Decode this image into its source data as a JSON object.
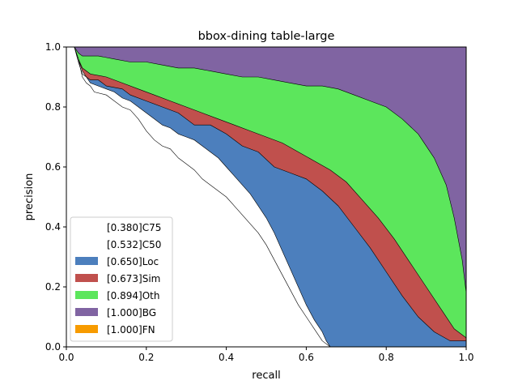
{
  "chart_data": {
    "type": "area",
    "title": "bbox-dining table-large",
    "xlabel": "recall",
    "ylabel": "precision",
    "xlim": [
      0,
      1
    ],
    "ylim": [
      0,
      1
    ],
    "xticks": [
      "0.0",
      "0.2",
      "0.4",
      "0.6",
      "0.8",
      "1.0"
    ],
    "yticks": [
      "0.0",
      "0.2",
      "0.4",
      "0.6",
      "0.8",
      "1.0"
    ],
    "legend_position": "lower-left",
    "series": [
      {
        "name": "[0.380]C75",
        "color": "#ffffff",
        "points": [
          [
            0.0,
            1.0
          ],
          [
            0.02,
            1.0
          ],
          [
            0.03,
            0.96
          ],
          [
            0.04,
            0.9
          ],
          [
            0.05,
            0.88
          ],
          [
            0.06,
            0.87
          ],
          [
            0.07,
            0.85
          ],
          [
            0.1,
            0.84
          ],
          [
            0.12,
            0.82
          ],
          [
            0.14,
            0.8
          ],
          [
            0.16,
            0.79
          ],
          [
            0.18,
            0.76
          ],
          [
            0.2,
            0.72
          ],
          [
            0.22,
            0.69
          ],
          [
            0.24,
            0.67
          ],
          [
            0.26,
            0.66
          ],
          [
            0.28,
            0.63
          ],
          [
            0.3,
            0.61
          ],
          [
            0.32,
            0.59
          ],
          [
            0.34,
            0.56
          ],
          [
            0.36,
            0.54
          ],
          [
            0.38,
            0.52
          ],
          [
            0.4,
            0.5
          ],
          [
            0.42,
            0.47
          ],
          [
            0.44,
            0.44
          ],
          [
            0.46,
            0.41
          ],
          [
            0.48,
            0.38
          ],
          [
            0.5,
            0.34
          ],
          [
            0.52,
            0.29
          ],
          [
            0.54,
            0.24
          ],
          [
            0.56,
            0.19
          ],
          [
            0.58,
            0.14
          ],
          [
            0.6,
            0.1
          ],
          [
            0.62,
            0.06
          ],
          [
            0.64,
            0.02
          ],
          [
            0.66,
            0.0
          ]
        ]
      },
      {
        "name": "[0.532]C50",
        "color": "#ffffff",
        "points": [
          [
            0.0,
            1.0
          ],
          [
            0.02,
            1.0
          ],
          [
            0.03,
            0.96
          ],
          [
            0.04,
            0.92
          ],
          [
            0.05,
            0.9
          ],
          [
            0.06,
            0.88
          ],
          [
            0.08,
            0.87
          ],
          [
            0.1,
            0.86
          ],
          [
            0.12,
            0.85
          ],
          [
            0.14,
            0.83
          ],
          [
            0.16,
            0.82
          ],
          [
            0.18,
            0.8
          ],
          [
            0.2,
            0.78
          ],
          [
            0.22,
            0.76
          ],
          [
            0.24,
            0.74
          ],
          [
            0.26,
            0.73
          ],
          [
            0.28,
            0.71
          ],
          [
            0.3,
            0.7
          ],
          [
            0.32,
            0.69
          ],
          [
            0.34,
            0.67
          ],
          [
            0.36,
            0.65
          ],
          [
            0.38,
            0.63
          ],
          [
            0.4,
            0.6
          ],
          [
            0.42,
            0.57
          ],
          [
            0.44,
            0.54
          ],
          [
            0.46,
            0.51
          ],
          [
            0.48,
            0.47
          ],
          [
            0.5,
            0.43
          ],
          [
            0.52,
            0.38
          ],
          [
            0.54,
            0.32
          ],
          [
            0.56,
            0.26
          ],
          [
            0.58,
            0.2
          ],
          [
            0.6,
            0.14
          ],
          [
            0.62,
            0.09
          ],
          [
            0.64,
            0.05
          ],
          [
            0.65,
            0.02
          ],
          [
            0.66,
            0.0
          ]
        ]
      },
      {
        "name": "[0.650]Loc",
        "color": "#4c7fbd",
        "points": [
          [
            0.0,
            1.0
          ],
          [
            0.02,
            1.0
          ],
          [
            0.03,
            0.95
          ],
          [
            0.04,
            0.91
          ],
          [
            0.06,
            0.89
          ],
          [
            0.08,
            0.89
          ],
          [
            0.1,
            0.87
          ],
          [
            0.14,
            0.86
          ],
          [
            0.16,
            0.84
          ],
          [
            0.2,
            0.82
          ],
          [
            0.24,
            0.8
          ],
          [
            0.28,
            0.78
          ],
          [
            0.32,
            0.74
          ],
          [
            0.36,
            0.74
          ],
          [
            0.4,
            0.71
          ],
          [
            0.44,
            0.67
          ],
          [
            0.48,
            0.65
          ],
          [
            0.52,
            0.6
          ],
          [
            0.56,
            0.58
          ],
          [
            0.6,
            0.56
          ],
          [
            0.64,
            0.52
          ],
          [
            0.68,
            0.47
          ],
          [
            0.72,
            0.4
          ],
          [
            0.76,
            0.33
          ],
          [
            0.8,
            0.25
          ],
          [
            0.84,
            0.17
          ],
          [
            0.88,
            0.1
          ],
          [
            0.92,
            0.05
          ],
          [
            0.96,
            0.02
          ],
          [
            1.0,
            0.02
          ]
        ]
      },
      {
        "name": "[0.673]Sim",
        "color": "#c0504d",
        "points": [
          [
            0.0,
            1.0
          ],
          [
            0.02,
            1.0
          ],
          [
            0.03,
            0.96
          ],
          [
            0.04,
            0.93
          ],
          [
            0.06,
            0.91
          ],
          [
            0.1,
            0.9
          ],
          [
            0.14,
            0.88
          ],
          [
            0.18,
            0.86
          ],
          [
            0.22,
            0.84
          ],
          [
            0.26,
            0.82
          ],
          [
            0.3,
            0.8
          ],
          [
            0.34,
            0.78
          ],
          [
            0.38,
            0.76
          ],
          [
            0.42,
            0.74
          ],
          [
            0.46,
            0.72
          ],
          [
            0.5,
            0.7
          ],
          [
            0.54,
            0.68
          ],
          [
            0.58,
            0.65
          ],
          [
            0.62,
            0.62
          ],
          [
            0.66,
            0.59
          ],
          [
            0.7,
            0.55
          ],
          [
            0.74,
            0.49
          ],
          [
            0.78,
            0.43
          ],
          [
            0.82,
            0.36
          ],
          [
            0.86,
            0.28
          ],
          [
            0.9,
            0.2
          ],
          [
            0.94,
            0.12
          ],
          [
            0.97,
            0.06
          ],
          [
            1.0,
            0.03
          ]
        ]
      },
      {
        "name": "[0.894]Oth",
        "color": "#5ce65c",
        "points": [
          [
            0.0,
            1.0
          ],
          [
            0.02,
            1.0
          ],
          [
            0.03,
            0.98
          ],
          [
            0.04,
            0.97
          ],
          [
            0.08,
            0.97
          ],
          [
            0.12,
            0.96
          ],
          [
            0.16,
            0.95
          ],
          [
            0.2,
            0.95
          ],
          [
            0.24,
            0.94
          ],
          [
            0.28,
            0.93
          ],
          [
            0.32,
            0.93
          ],
          [
            0.36,
            0.92
          ],
          [
            0.4,
            0.91
          ],
          [
            0.44,
            0.9
          ],
          [
            0.48,
            0.9
          ],
          [
            0.52,
            0.89
          ],
          [
            0.56,
            0.88
          ],
          [
            0.6,
            0.87
          ],
          [
            0.64,
            0.87
          ],
          [
            0.68,
            0.86
          ],
          [
            0.72,
            0.84
          ],
          [
            0.76,
            0.82
          ],
          [
            0.8,
            0.8
          ],
          [
            0.84,
            0.76
          ],
          [
            0.88,
            0.71
          ],
          [
            0.92,
            0.63
          ],
          [
            0.95,
            0.54
          ],
          [
            0.97,
            0.43
          ],
          [
            0.99,
            0.29
          ],
          [
            1.0,
            0.18
          ]
        ]
      },
      {
        "name": "[1.000]BG",
        "color": "#8064a2",
        "points": [
          [
            0.0,
            1.0
          ],
          [
            1.0,
            1.0
          ]
        ]
      },
      {
        "name": "[1.000]FN",
        "color": "#f79b00",
        "points": [
          [
            0.0,
            1.0
          ],
          [
            1.0,
            1.0
          ]
        ]
      }
    ]
  }
}
